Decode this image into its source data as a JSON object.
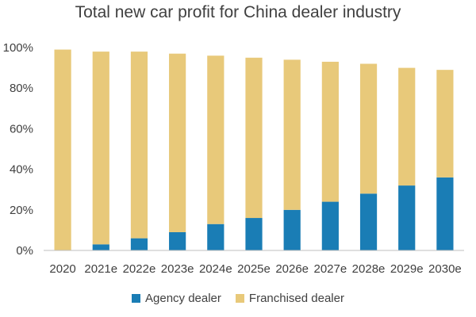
{
  "chart_data": {
    "type": "bar",
    "stacked": true,
    "title": "Total new car profit for China dealer industry",
    "xlabel": "",
    "ylabel": "",
    "categories": [
      "2020",
      "2021e",
      "2022e",
      "2023e",
      "2024e",
      "2025e",
      "2026e",
      "2027e",
      "2028e",
      "2029e",
      "2030e"
    ],
    "series": [
      {
        "name": "Agency dealer",
        "color": "#1a7db5",
        "values": [
          0,
          3,
          6,
          9,
          13,
          16,
          20,
          24,
          28,
          32,
          36
        ]
      },
      {
        "name": "Franchised dealer",
        "color": "#e8c97a",
        "values": [
          99,
          95,
          92,
          88,
          83,
          79,
          74,
          69,
          64,
          58,
          53
        ]
      }
    ],
    "ylim": [
      0,
      100
    ],
    "yticks": [
      "0%",
      "20%",
      "40%",
      "60%",
      "80%",
      "100%"
    ],
    "grid": false,
    "legend_position": "bottom"
  }
}
